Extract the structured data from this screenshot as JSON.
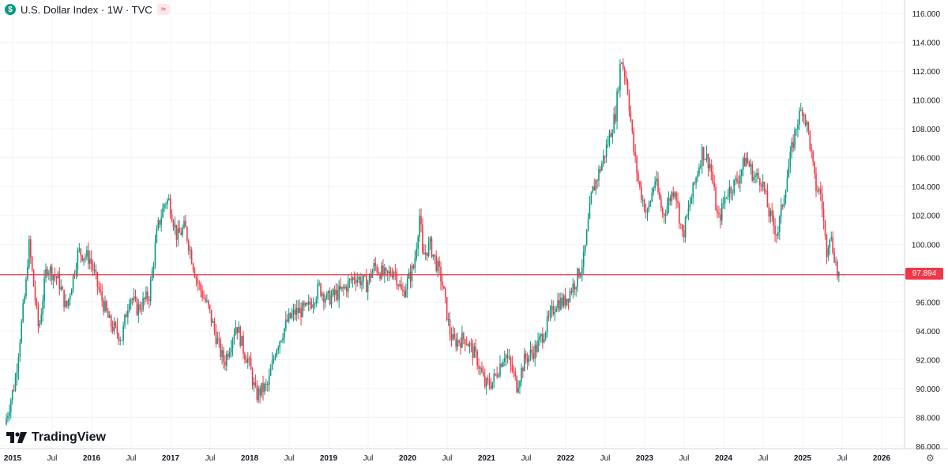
{
  "header": {
    "title": "U.S. Dollar Index · 1W · TVC",
    "currency_badge": "$",
    "indicator_icon": "wave-icon"
  },
  "logo": {
    "text": "TradingView"
  },
  "price_label": "97.894",
  "colors": {
    "up": "#089981",
    "down": "#f23645",
    "grid": "#f0f3fa",
    "price_line": "#f23645"
  },
  "chart_data": {
    "type": "candlestick",
    "title": "U.S. Dollar Index · 1W · TVC",
    "ylim": [
      86,
      116
    ],
    "y_ticks": [
      "86.000",
      "88.000",
      "90.000",
      "92.000",
      "94.000",
      "96.000",
      "98.000",
      "100.000",
      "102.000",
      "104.000",
      "106.000",
      "108.000",
      "110.000",
      "112.000",
      "114.000",
      "116.000"
    ],
    "x_ticks": [
      {
        "label": "2015",
        "t": 2015.0
      },
      {
        "label": "Jul",
        "t": 2015.5
      },
      {
        "label": "2016",
        "t": 2016.0
      },
      {
        "label": "Jul",
        "t": 2016.5
      },
      {
        "label": "2017",
        "t": 2017.0
      },
      {
        "label": "Jul",
        "t": 2017.5
      },
      {
        "label": "2018",
        "t": 2018.0
      },
      {
        "label": "Jul",
        "t": 2018.5
      },
      {
        "label": "2019",
        "t": 2019.0
      },
      {
        "label": "Jul",
        "t": 2019.5
      },
      {
        "label": "2020",
        "t": 2020.0
      },
      {
        "label": "Jul",
        "t": 2020.5
      },
      {
        "label": "2021",
        "t": 2021.0
      },
      {
        "label": "Jul",
        "t": 2021.5
      },
      {
        "label": "2022",
        "t": 2022.0
      },
      {
        "label": "Jul",
        "t": 2022.5
      },
      {
        "label": "2023",
        "t": 2023.0
      },
      {
        "label": "Jul",
        "t": 2023.5
      },
      {
        "label": "2024",
        "t": 2024.0
      },
      {
        "label": "Jul",
        "t": 2024.5
      },
      {
        "label": "2025",
        "t": 2025.0
      },
      {
        "label": "Jul",
        "t": 2025.5
      },
      {
        "label": "2026",
        "t": 2026.0
      }
    ],
    "xlim": [
      2015.0,
      2026.25
    ],
    "last_price": 97.894,
    "price_path": [
      [
        2014.92,
        87.5
      ],
      [
        2015.05,
        90.5
      ],
      [
        2015.2,
        97.8
      ],
      [
        2015.22,
        100.3
      ],
      [
        2015.35,
        94.0
      ],
      [
        2015.45,
        98.5
      ],
      [
        2015.6,
        97.5
      ],
      [
        2015.7,
        95.5
      ],
      [
        2015.85,
        99.5
      ],
      [
        2016.0,
        99.0
      ],
      [
        2016.1,
        97.0
      ],
      [
        2016.25,
        94.5
      ],
      [
        2016.4,
        93.5
      ],
      [
        2016.5,
        96.5
      ],
      [
        2016.6,
        95.5
      ],
      [
        2016.75,
        96.5
      ],
      [
        2016.85,
        101.0
      ],
      [
        2016.95,
        103.0
      ],
      [
        2017.0,
        103.0
      ],
      [
        2017.1,
        100.5
      ],
      [
        2017.2,
        101.2
      ],
      [
        2017.35,
        97.5
      ],
      [
        2017.5,
        95.5
      ],
      [
        2017.65,
        92.5
      ],
      [
        2017.7,
        91.8
      ],
      [
        2017.85,
        94.5
      ],
      [
        2017.95,
        92.5
      ],
      [
        2018.0,
        92.0
      ],
      [
        2018.1,
        89.5
      ],
      [
        2018.15,
        89.8
      ],
      [
        2018.25,
        90.2
      ],
      [
        2018.35,
        92.8
      ],
      [
        2018.5,
        94.7
      ],
      [
        2018.6,
        95.3
      ],
      [
        2018.75,
        95.5
      ],
      [
        2018.9,
        97.0
      ],
      [
        2019.0,
        96.2
      ],
      [
        2019.2,
        96.8
      ],
      [
        2019.35,
        97.8
      ],
      [
        2019.5,
        97.2
      ],
      [
        2019.6,
        98.5
      ],
      [
        2019.75,
        97.7
      ],
      [
        2019.85,
        98.3
      ],
      [
        2019.95,
        96.5
      ],
      [
        2020.1,
        98.5
      ],
      [
        2020.18,
        102.5
      ],
      [
        2020.2,
        99.0
      ],
      [
        2020.3,
        100.0
      ],
      [
        2020.45,
        97.5
      ],
      [
        2020.55,
        94.0
      ],
      [
        2020.6,
        93.2
      ],
      [
        2020.75,
        93.5
      ],
      [
        2020.9,
        92.0
      ],
      [
        2021.0,
        90.2
      ],
      [
        2021.1,
        90.5
      ],
      [
        2021.25,
        92.5
      ],
      [
        2021.35,
        91.2
      ],
      [
        2021.4,
        90.2
      ],
      [
        2021.5,
        92.0
      ],
      [
        2021.65,
        92.8
      ],
      [
        2021.75,
        94.0
      ],
      [
        2021.9,
        96.0
      ],
      [
        2022.0,
        96.0
      ],
      [
        2022.15,
        97.5
      ],
      [
        2022.25,
        99.0
      ],
      [
        2022.35,
        103.5
      ],
      [
        2022.5,
        106.0
      ],
      [
        2022.65,
        109.0
      ],
      [
        2022.72,
        113.0
      ],
      [
        2022.8,
        111.0
      ],
      [
        2022.88,
        106.5
      ],
      [
        2022.95,
        104.0
      ],
      [
        2023.05,
        102.0
      ],
      [
        2023.15,
        104.5
      ],
      [
        2023.25,
        102.0
      ],
      [
        2023.4,
        104.0
      ],
      [
        2023.5,
        100.5
      ],
      [
        2023.6,
        103.0
      ],
      [
        2023.75,
        106.5
      ],
      [
        2023.85,
        105.5
      ],
      [
        2023.95,
        101.5
      ],
      [
        2024.05,
        103.5
      ],
      [
        2024.2,
        104.5
      ],
      [
        2024.3,
        106.0
      ],
      [
        2024.4,
        104.7
      ],
      [
        2024.5,
        104.5
      ],
      [
        2024.6,
        102.0
      ],
      [
        2024.7,
        100.7
      ],
      [
        2024.8,
        104.0
      ],
      [
        2024.88,
        106.5
      ],
      [
        2024.95,
        108.5
      ],
      [
        2025.02,
        109.5
      ],
      [
        2025.1,
        107.5
      ],
      [
        2025.18,
        104.0
      ],
      [
        2025.25,
        103.5
      ],
      [
        2025.32,
        99.5
      ],
      [
        2025.36,
        100.8
      ],
      [
        2025.43,
        99.0
      ],
      [
        2025.46,
        97.894
      ]
    ]
  }
}
